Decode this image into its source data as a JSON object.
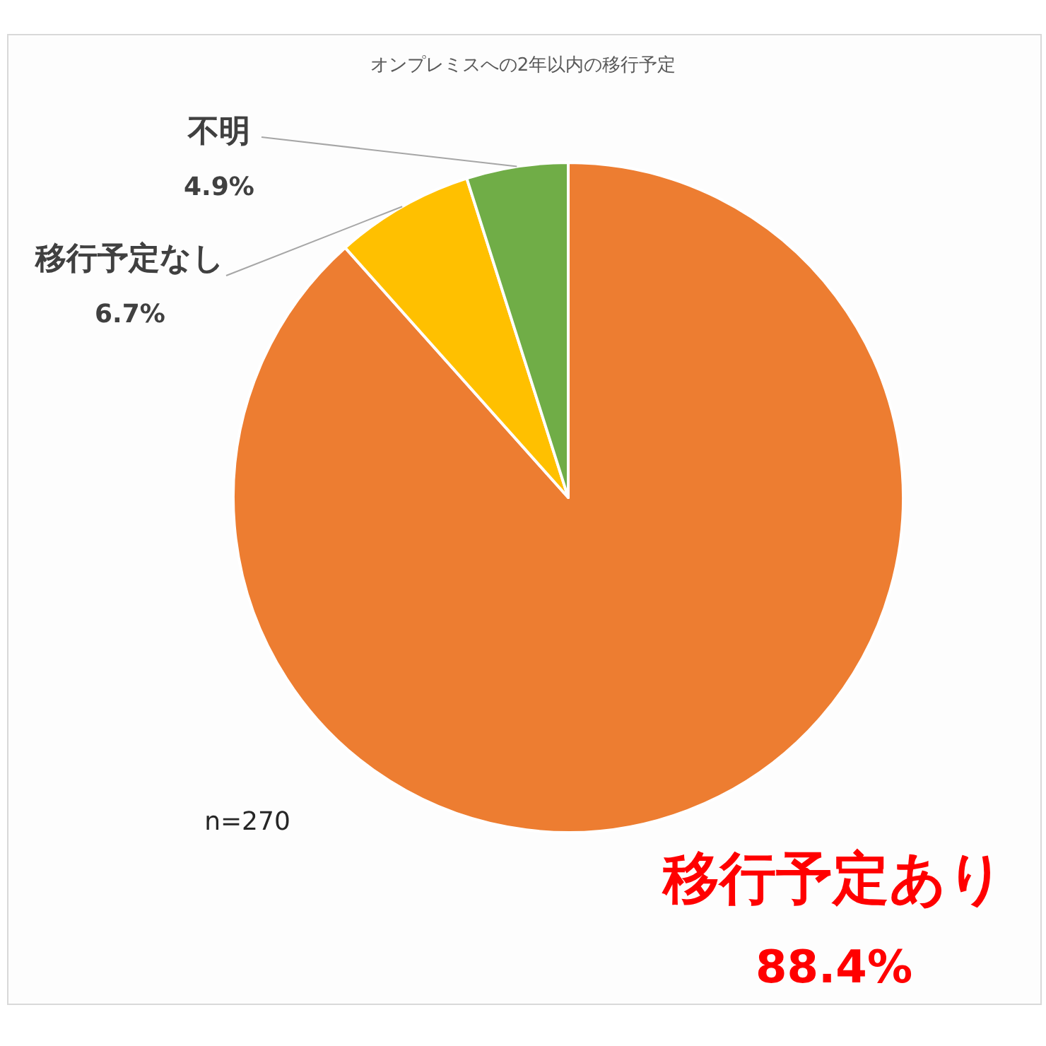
{
  "chart_data": {
    "type": "pie",
    "title": "オンプレミスへの2年以内の移行予定",
    "categories": [
      "移行予定あり",
      "移行予定なし",
      "不明"
    ],
    "values": [
      88.4,
      6.7,
      4.9
    ],
    "colors": [
      "#ed7d31",
      "#ffc000",
      "#70ad47"
    ],
    "value_labels": [
      "88.4%",
      "6.7%",
      "4.9%"
    ],
    "annotations": [
      "n=270"
    ]
  }
}
